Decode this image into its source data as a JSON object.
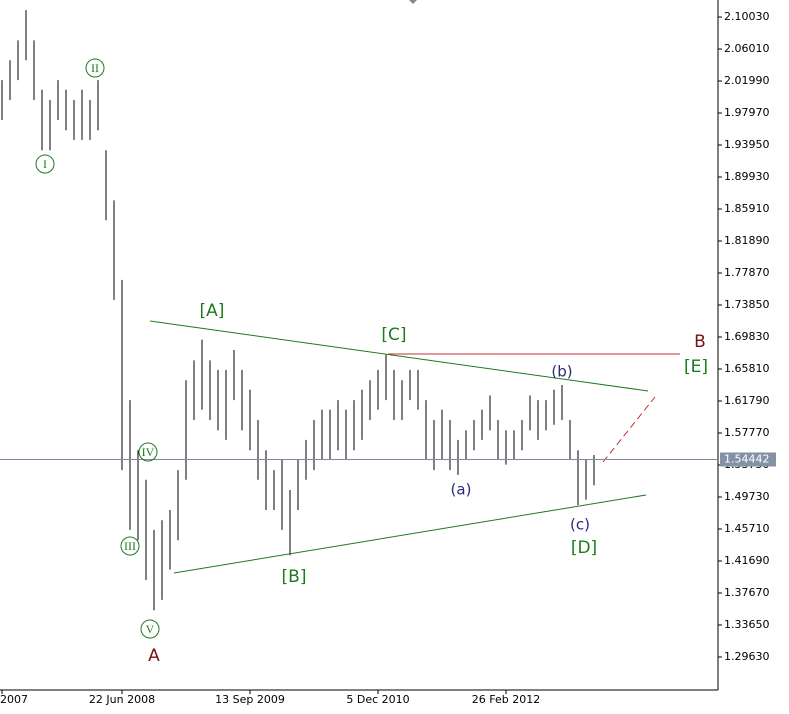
{
  "chart_data": {
    "type": "hlc",
    "categories": [
      "2007",
      null,
      null,
      null,
      null,
      null,
      null,
      null,
      null,
      null,
      null,
      null,
      null,
      null,
      null,
      "22 Jun 2008",
      null,
      null,
      null,
      null,
      null,
      null,
      null,
      null,
      null,
      null,
      null,
      null,
      null,
      null,
      null,
      "13 Sep 2009",
      null,
      null,
      null,
      null,
      null,
      null,
      null,
      null,
      null,
      null,
      null,
      null,
      null,
      null,
      null,
      "5 Dec 2010",
      null,
      null,
      null,
      null,
      null,
      null,
      null,
      null,
      null,
      null,
      null,
      null,
      null,
      null,
      null,
      "26 Feb 2012",
      null,
      null,
      null,
      null,
      null,
      null,
      null,
      null,
      null,
      null,
      null
    ],
    "high": [
      2.021,
      2.046,
      2.071,
      2.109,
      2.071,
      2.009,
      1.996,
      2.021,
      2.009,
      1.996,
      2.009,
      1.996,
      2.021,
      1.933,
      1.87,
      1.77,
      1.619,
      1.556,
      1.519,
      1.456,
      1.468,
      1.481,
      1.531,
      1.644,
      1.669,
      1.695,
      1.669,
      1.657,
      1.657,
      1.682,
      1.657,
      1.632,
      1.594,
      1.556,
      1.531,
      1.544,
      1.506,
      1.544,
      1.569,
      1.594,
      1.607,
      1.607,
      1.619,
      1.607,
      1.619,
      1.632,
      1.644,
      1.657,
      1.676,
      1.657,
      1.644,
      1.657,
      1.657,
      1.619,
      1.594,
      1.607,
      1.594,
      1.569,
      1.581,
      1.594,
      1.607,
      1.625,
      1.594,
      1.581,
      1.581,
      1.594,
      1.625,
      1.619,
      1.619,
      1.632,
      1.638,
      1.594,
      1.556,
      1.544,
      1.55
    ],
    "low": [
      1.971,
      1.996,
      2.021,
      2.046,
      1.996,
      1.933,
      1.933,
      1.971,
      1.958,
      1.946,
      1.946,
      1.946,
      1.958,
      1.845,
      1.745,
      1.531,
      1.456,
      1.443,
      1.393,
      1.355,
      1.368,
      1.406,
      1.443,
      1.519,
      1.594,
      1.607,
      1.594,
      1.581,
      1.569,
      1.619,
      1.581,
      1.556,
      1.519,
      1.481,
      1.481,
      1.456,
      1.424,
      1.481,
      1.519,
      1.531,
      1.544,
      1.544,
      1.556,
      1.544,
      1.556,
      1.569,
      1.594,
      1.607,
      1.619,
      1.594,
      1.594,
      1.619,
      1.607,
      1.544,
      1.531,
      1.544,
      1.531,
      1.525,
      1.544,
      1.556,
      1.569,
      1.581,
      1.544,
      1.538,
      1.544,
      1.556,
      1.581,
      1.569,
      1.581,
      1.588,
      1.594,
      1.544,
      1.487,
      1.494,
      1.512
    ],
    "color": "#000000",
    "ylim": [
      1.2548,
      2.1217
    ],
    "yticks": [
      {
        "value": 2.1003,
        "label": "2.10030"
      },
      {
        "value": 2.0601,
        "label": "2.06010"
      },
      {
        "value": 2.0199,
        "label": "2.01990"
      },
      {
        "value": 1.9797,
        "label": "1.97970"
      },
      {
        "value": 1.9395,
        "label": "1.93950"
      },
      {
        "value": 1.8993,
        "label": "1.89930"
      },
      {
        "value": 1.8591,
        "label": "1.85910"
      },
      {
        "value": 1.8189,
        "label": "1.81890"
      },
      {
        "value": 1.7787,
        "label": "1.77870"
      },
      {
        "value": 1.7385,
        "label": "1.73850"
      },
      {
        "value": 1.6983,
        "label": "1.69830"
      },
      {
        "value": 1.6581,
        "label": "1.65810"
      },
      {
        "value": 1.6179,
        "label": "1.61790"
      },
      {
        "value": 1.5777,
        "label": "1.57770"
      },
      {
        "value": 1.5375,
        "label": "1.53750"
      },
      {
        "value": 1.4973,
        "label": "1.49730"
      },
      {
        "value": 1.4571,
        "label": "1.45710"
      },
      {
        "value": 1.4169,
        "label": "1.41690"
      },
      {
        "value": 1.3767,
        "label": "1.37670"
      },
      {
        "value": 1.3365,
        "label": "1.33650"
      },
      {
        "value": 1.2963,
        "label": "1.29630"
      }
    ],
    "last_price": 1.54442,
    "annotations": [
      "I",
      "II",
      "III",
      "IV",
      "V",
      "A",
      "[A]",
      "[B]",
      "[C]",
      "(a)",
      "(b)",
      "(c)",
      "[D]",
      "[E]",
      "B"
    ]
  }
}
